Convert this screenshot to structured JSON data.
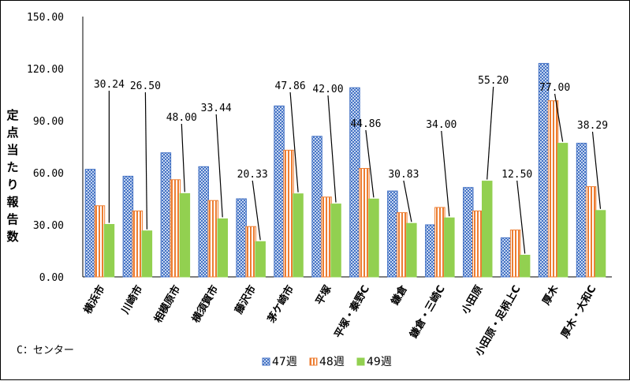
{
  "chart_data": {
    "type": "bar",
    "ylabel": "定点当たり報告数",
    "ylim": [
      0,
      150
    ],
    "yticks": [
      "0.00",
      "30.00",
      "60.00",
      "90.00",
      "120.00",
      "150.00"
    ],
    "categories": [
      "横浜市",
      "川崎市",
      "相模原市",
      "横須賀市",
      "藤沢市",
      "茅ケ崎市",
      "平塚",
      "平塚・秦野C",
      "鎌倉",
      "鎌倉・三崎C",
      "小田原",
      "小田原・足柄上C",
      "厚木",
      "厚木・大和C"
    ],
    "series": [
      {
        "name": "47週",
        "color": "#4472c4",
        "values": [
          62,
          58,
          71.5,
          63.5,
          45,
          98.5,
          81,
          109,
          49.5,
          30,
          51.5,
          22.5,
          123,
          77
        ]
      },
      {
        "name": "48週",
        "color": "#ed7d31",
        "values": [
          41,
          38,
          56,
          44,
          29,
          73,
          46,
          62.5,
          37,
          40,
          38,
          27,
          101.5,
          52
        ]
      },
      {
        "name": "49週",
        "color": "#92d050",
        "values": [
          30.24,
          26.5,
          48.0,
          33.44,
          20.33,
          47.86,
          42.0,
          44.86,
          30.83,
          34.0,
          55.2,
          12.5,
          77.0,
          38.29
        ]
      }
    ],
    "data_labels": [
      "30.24",
      "26.50",
      "48.00",
      "33.44",
      "20.33",
      "47.86",
      "42.00",
      "44.86",
      "30.83",
      "34.00",
      "55.20",
      "12.50",
      "77.00",
      "38.29"
    ],
    "legend_position": "bottom",
    "grid": false
  },
  "note": "C：センター"
}
